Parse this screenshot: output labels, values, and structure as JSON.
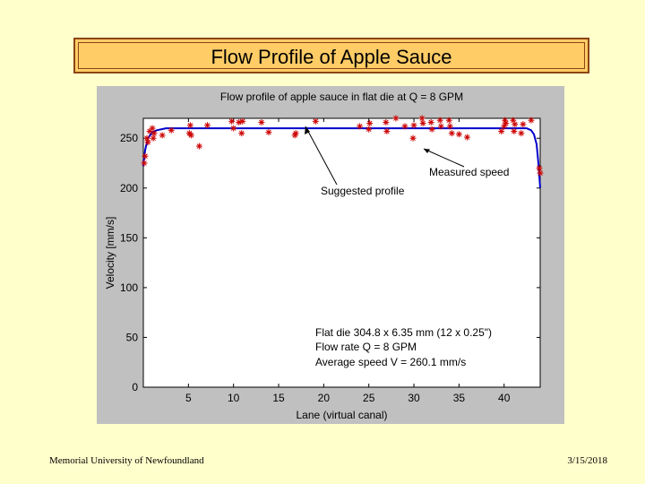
{
  "slide": {
    "title": "Flow Profile of Apple Sauce",
    "footer_left": "Memorial University of Newfoundland",
    "footer_right": "3/15/2018",
    "background_color": "#ffffcc",
    "title_box_color": "#ffcc66"
  },
  "chart_data": {
    "type": "scatter",
    "title": "Flow profile of apple sauce in flat die at Q = 8 GPM",
    "xlabel": "Lane (virtual canal)",
    "ylabel": "Velocity [mm/s]",
    "xlim": [
      0,
      44
    ],
    "ylim": [
      0,
      270
    ],
    "xticks": [
      5,
      10,
      15,
      20,
      25,
      30,
      35,
      40
    ],
    "yticks": [
      0,
      50,
      100,
      150,
      200,
      250
    ],
    "grid": false,
    "series": [
      {
        "kind": "markers",
        "marker": "asterisk",
        "color": "#cc0000",
        "points": [
          [
            0.1,
            225
          ],
          [
            0.2,
            232
          ],
          [
            0.4,
            250
          ],
          [
            0.5,
            246
          ],
          [
            0.7,
            257
          ],
          [
            1.0,
            260
          ],
          [
            1.1,
            250
          ],
          [
            1.2,
            255
          ],
          [
            2.1,
            253
          ],
          [
            3.1,
            258
          ],
          [
            5.1,
            255
          ],
          [
            5.2,
            263
          ],
          [
            5.3,
            253
          ],
          [
            6.2,
            242
          ],
          [
            7.1,
            263
          ],
          [
            9.8,
            267
          ],
          [
            10.0,
            260
          ],
          [
            10.6,
            266
          ],
          [
            10.9,
            255
          ],
          [
            11.0,
            267
          ],
          [
            13.1,
            266
          ],
          [
            13.9,
            256
          ],
          [
            16.8,
            253
          ],
          [
            16.9,
            255
          ],
          [
            19.1,
            267
          ],
          [
            24.0,
            262
          ],
          [
            25.0,
            259
          ],
          [
            25.1,
            265
          ],
          [
            26.9,
            266
          ],
          [
            27.0,
            257
          ],
          [
            28.0,
            270
          ],
          [
            29.0,
            262
          ],
          [
            29.9,
            250
          ],
          [
            30.0,
            263
          ],
          [
            30.9,
            270
          ],
          [
            31.0,
            265
          ],
          [
            31.9,
            266
          ],
          [
            32.0,
            259
          ],
          [
            32.9,
            268
          ],
          [
            33.0,
            262
          ],
          [
            33.9,
            268
          ],
          [
            34.0,
            262
          ],
          [
            34.2,
            255
          ],
          [
            35.0,
            254
          ],
          [
            35.9,
            251
          ],
          [
            39.7,
            257
          ],
          [
            40.0,
            262
          ],
          [
            40.1,
            268
          ],
          [
            40.2,
            265
          ],
          [
            41.0,
            268
          ],
          [
            41.1,
            257
          ],
          [
            41.2,
            264
          ],
          [
            41.9,
            255
          ],
          [
            42.1,
            264
          ],
          [
            43.0,
            268
          ],
          [
            43.9,
            220
          ],
          [
            44.0,
            215
          ]
        ]
      }
    ],
    "suggested_profile": {
      "color": "#0000cc",
      "x": [
        0,
        0.2,
        0.5,
        1.0,
        1.5,
        2.5,
        42.5,
        43.0,
        43.3,
        43.6,
        43.8,
        44.0
      ],
      "y": [
        222,
        238,
        250,
        256,
        258,
        260,
        260,
        258,
        254,
        244,
        225,
        200
      ]
    },
    "annotations": [
      {
        "text": "Measured speed",
        "arrow_to": [
          40.2,
          262
        ]
      },
      {
        "text": "Suggested profile",
        "arrow_to": [
          17.5,
          260
        ]
      }
    ],
    "info_text": [
      "Flat die 304.8 x 6.35 mm (12 x 0.25\")",
      "Flow rate Q = 8 GPM",
      "Average speed V = 260.1 mm/s"
    ]
  }
}
